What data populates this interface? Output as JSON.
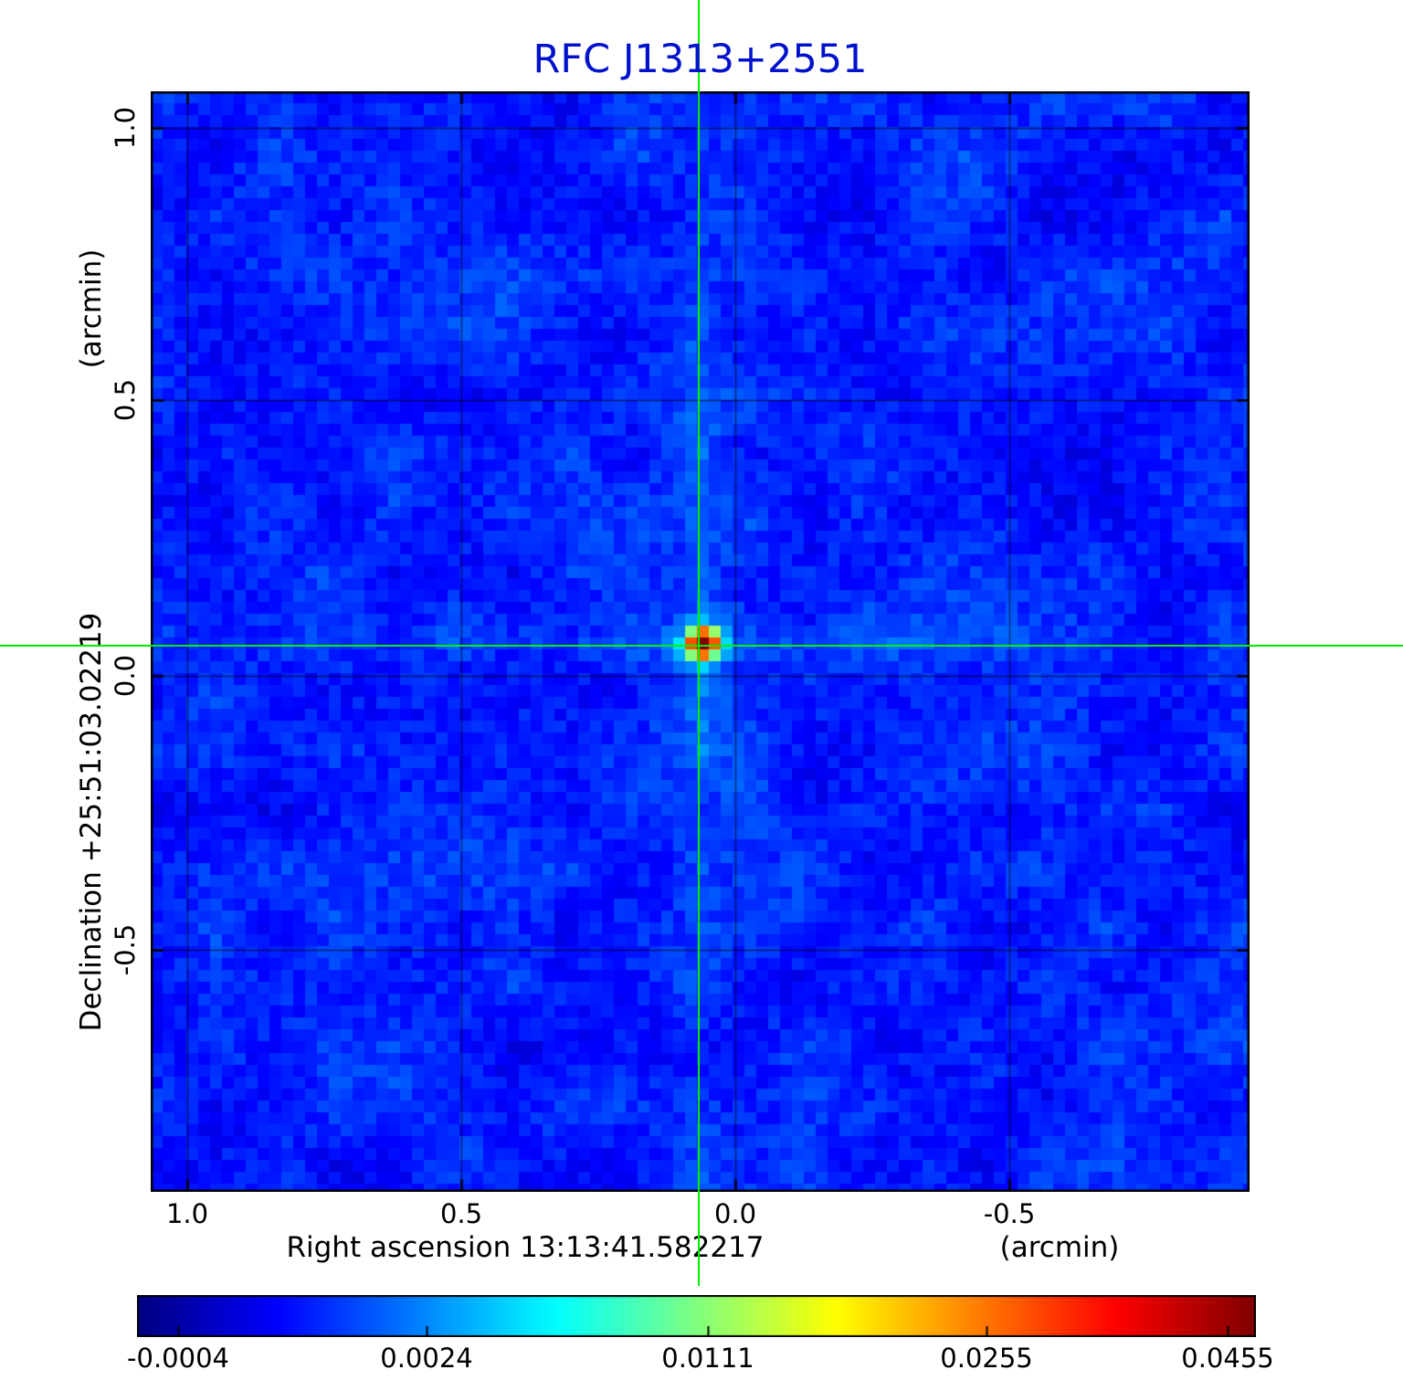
{
  "chart_data": {
    "type": "heatmap",
    "title": "RFC J1313+2551",
    "xlabel": "Right ascension  13:13:41.582217",
    "x_unit": "(arcmin)",
    "ylabel": "Declination  +25:51:03.02219",
    "y_unit": "(arcmin)",
    "x_ticks": [
      "1.0",
      "0.5",
      "0.0",
      "-0.5"
    ],
    "y_ticks": [
      "1.0",
      "0.5",
      "0.0",
      "-0.5"
    ],
    "x_axis_range_arcmin": [
      1.07,
      -0.94
    ],
    "y_axis_range_arcmin": [
      -0.94,
      1.07
    ],
    "grid": true,
    "colormap": "jet",
    "colorbar_ticks": [
      "-0.0004",
      "0.0024",
      "0.0111",
      "0.0255",
      "0.0455"
    ],
    "crosshair_position_arcmin": {
      "x": 0.07,
      "y": 0.05
    },
    "source_peak_colorbar_value": "0.0455",
    "colors": {
      "title": "#0011cc",
      "crosshair": "#00ee00",
      "frame": "#000000",
      "background_field_low": "#0000d9",
      "background_field_high": "#0066ff"
    }
  }
}
